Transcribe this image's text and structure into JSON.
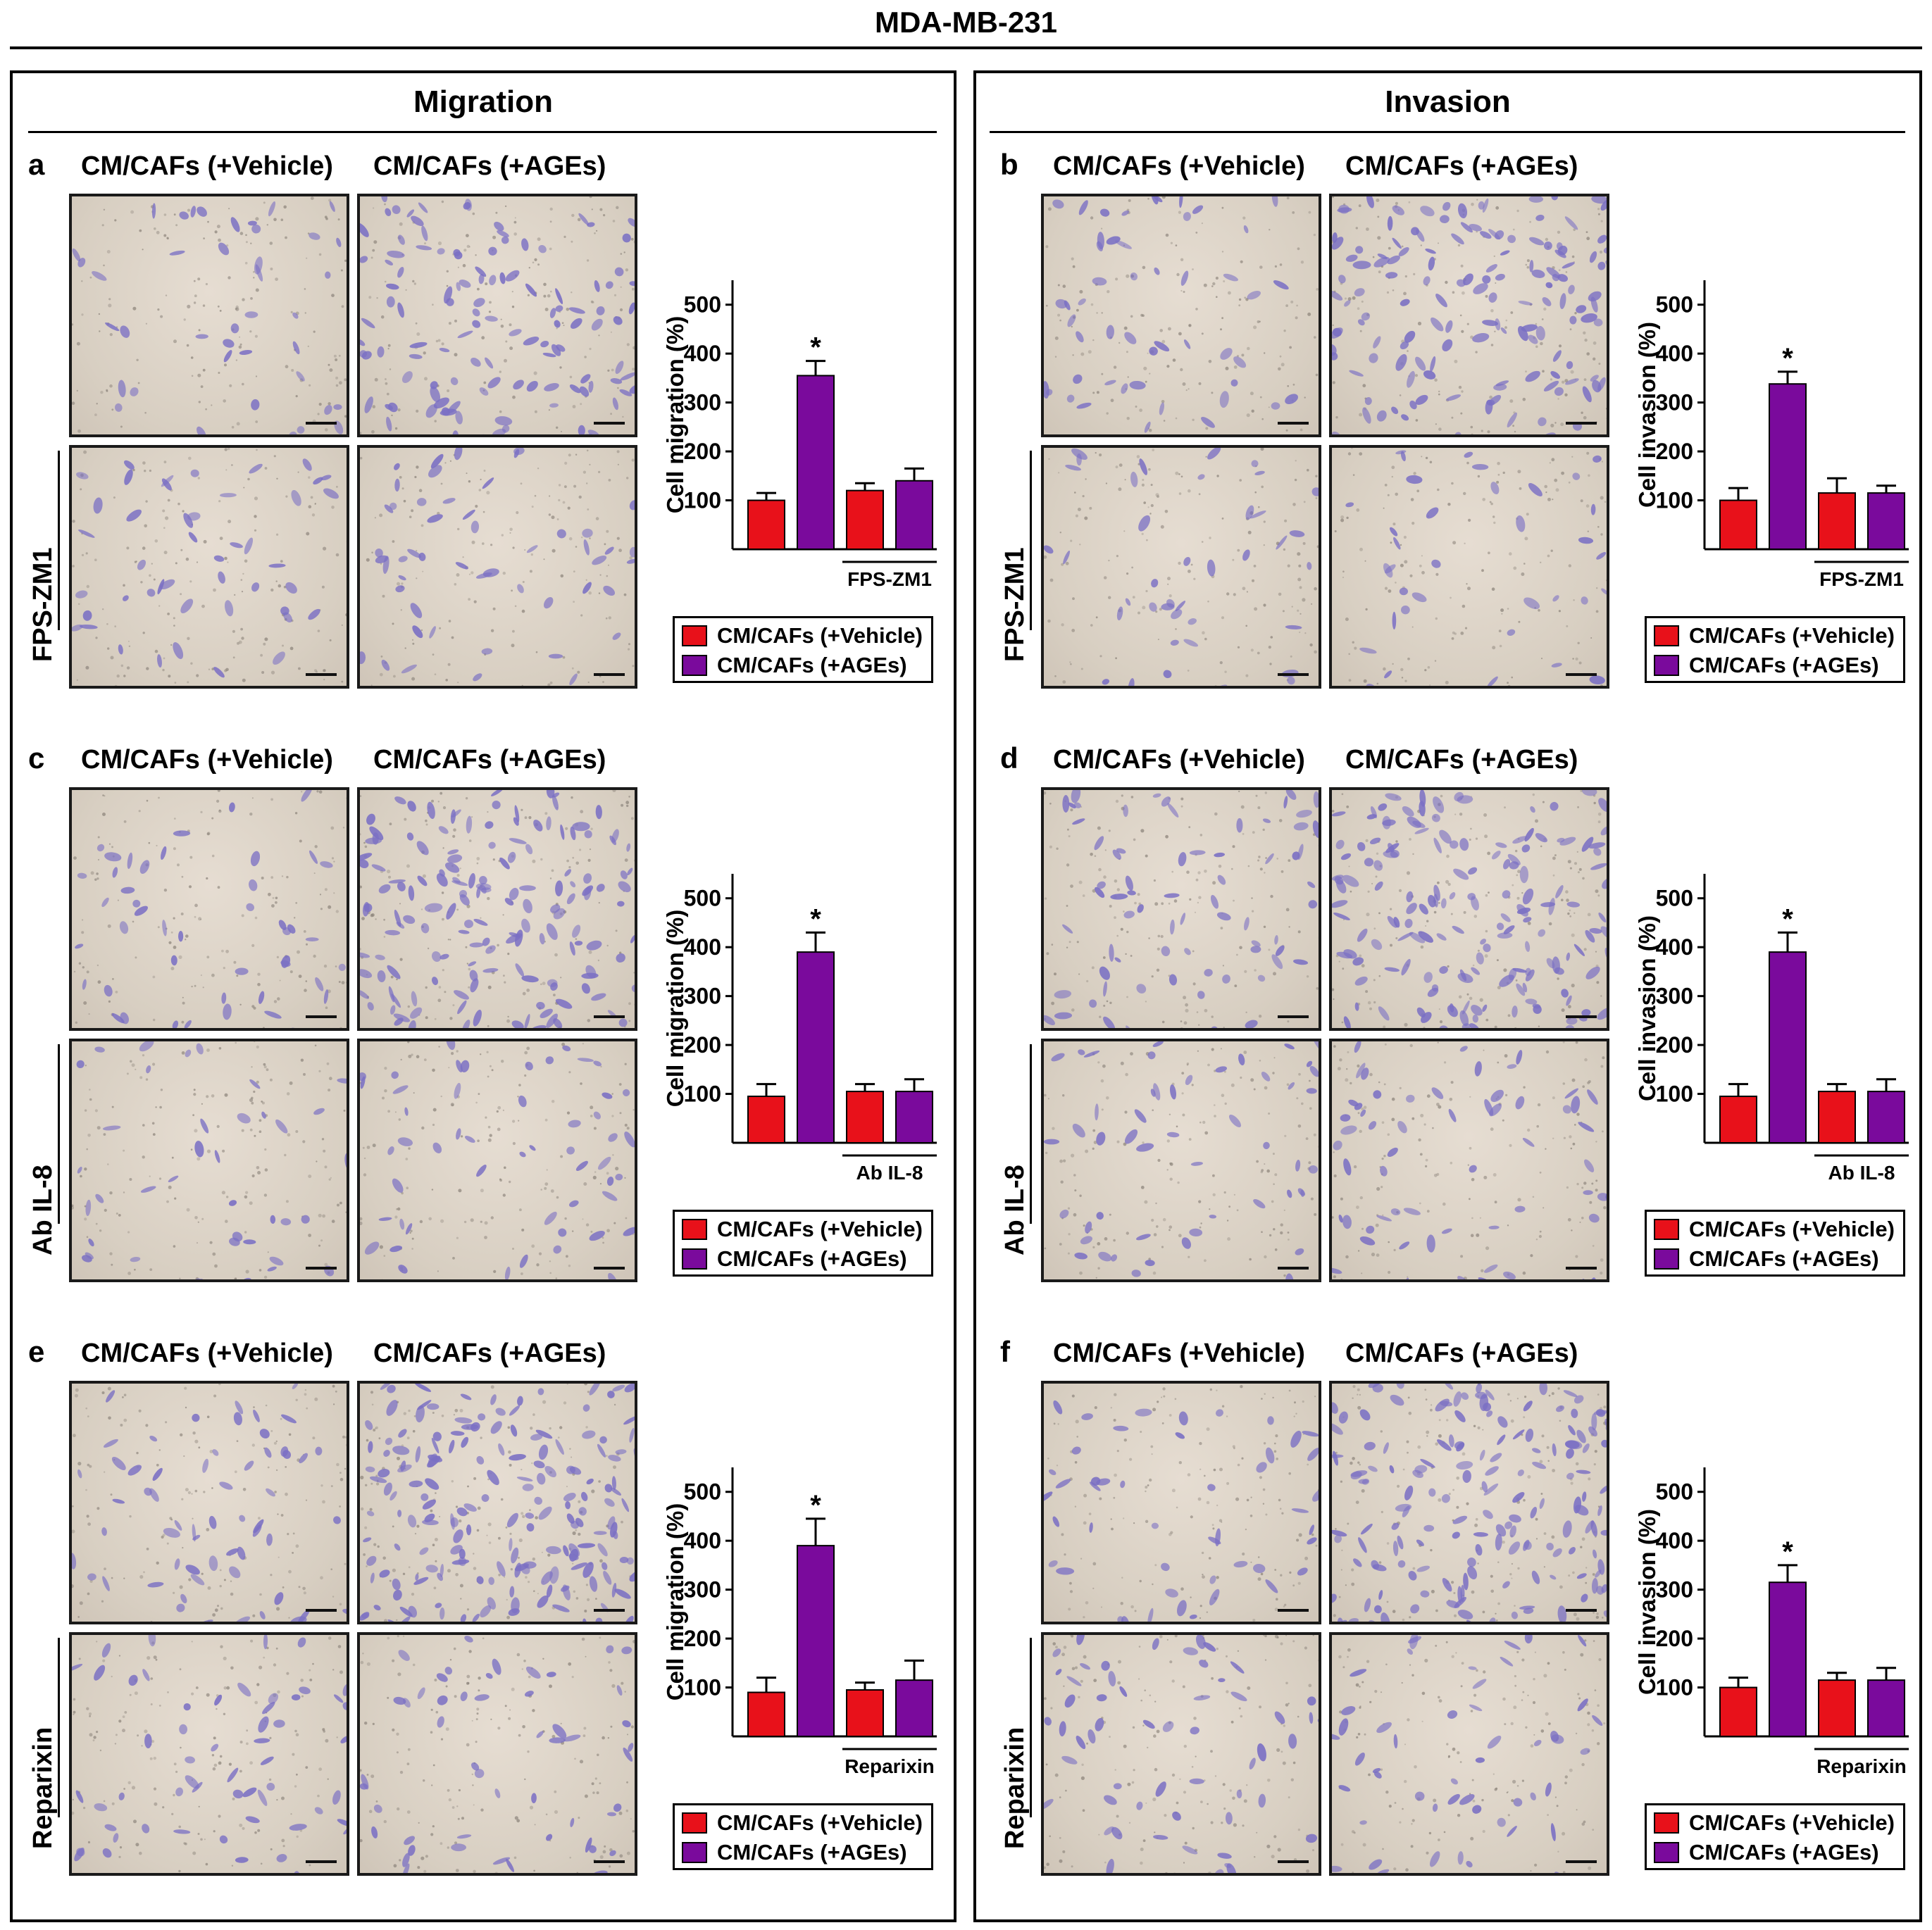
{
  "figure": {
    "title": "MDA-MB-231",
    "sections": {
      "migration": "Migration",
      "invasion": "Invasion"
    },
    "column_labels": {
      "vehicle": "CM/CAFs (+Vehicle)",
      "ages": "CM/CAFs (+AGEs)"
    },
    "legend": {
      "vehicle": "CM/CAFs (+Vehicle)",
      "ages": "CM/CAFs (+AGEs)"
    },
    "colors": {
      "vehicle": "#e8111a",
      "ages": "#7a0a9c",
      "micro_bg": "#d8cfc2",
      "cell_stain": "#7a6fc4"
    },
    "panels": [
      {
        "label": "a",
        "row_label": "FPS-ZM1",
        "inhibitor": "FPS-ZM1",
        "ylabel": "Cell migration (%)"
      },
      {
        "label": "b",
        "row_label": "FPS-ZM1",
        "inhibitor": "FPS-ZM1",
        "ylabel": "Cell invasion (%)"
      },
      {
        "label": "c",
        "row_label": "Ab IL-8",
        "inhibitor": "Ab IL-8",
        "ylabel": "Cell migration (%)"
      },
      {
        "label": "d",
        "row_label": "Ab IL-8",
        "inhibitor": "Ab IL-8",
        "ylabel": "Cell invasion (%)"
      },
      {
        "label": "e",
        "row_label": "Reparixin",
        "inhibitor": "Reparixin",
        "ylabel": "Cell migration (%)"
      },
      {
        "label": "f",
        "row_label": "Reparixin",
        "inhibitor": "Reparixin",
        "ylabel": "Cell invasion (%)"
      }
    ]
  },
  "chart_data": [
    {
      "panel": "a",
      "type": "bar",
      "title": "",
      "xlabel": "",
      "ylabel": "Cell migration (%)",
      "ylim": [
        0,
        550
      ],
      "yticks": [
        100,
        200,
        300,
        400,
        500
      ],
      "categories": [
        "CM/CAFs (+Vehicle)",
        "CM/CAFs (+AGEs)",
        "CM/CAFs (+Vehicle) + FPS-ZM1",
        "CM/CAFs (+AGEs) + FPS-ZM1"
      ],
      "values": [
        100,
        355,
        120,
        140
      ],
      "errors": [
        15,
        30,
        15,
        25
      ],
      "significant": [
        false,
        true,
        false,
        false
      ],
      "annotation": "*",
      "bracket_label": "FPS-ZM1"
    },
    {
      "panel": "b",
      "type": "bar",
      "title": "",
      "xlabel": "",
      "ylabel": "Cell invasion (%)",
      "ylim": [
        0,
        550
      ],
      "yticks": [
        100,
        200,
        300,
        400,
        500
      ],
      "categories": [
        "CM/CAFs (+Vehicle)",
        "CM/CAFs (+AGEs)",
        "CM/CAFs (+Vehicle) + FPS-ZM1",
        "CM/CAFs (+AGEs) + FPS-ZM1"
      ],
      "values": [
        100,
        338,
        115,
        115
      ],
      "errors": [
        25,
        25,
        30,
        15
      ],
      "significant": [
        false,
        true,
        false,
        false
      ],
      "annotation": "*",
      "bracket_label": "FPS-ZM1"
    },
    {
      "panel": "c",
      "type": "bar",
      "title": "",
      "xlabel": "",
      "ylabel": "Cell migration (%)",
      "ylim": [
        0,
        550
      ],
      "yticks": [
        100,
        200,
        300,
        400,
        500
      ],
      "categories": [
        "CM/CAFs (+Vehicle)",
        "CM/CAFs (+AGEs)",
        "CM/CAFs (+Vehicle) + Ab IL-8",
        "CM/CAFs (+AGEs) + Ab IL-8"
      ],
      "values": [
        95,
        390,
        105,
        105
      ],
      "errors": [
        25,
        40,
        15,
        25
      ],
      "significant": [
        false,
        true,
        false,
        false
      ],
      "annotation": "*",
      "bracket_label": "Ab IL-8"
    },
    {
      "panel": "d",
      "type": "bar",
      "title": "",
      "xlabel": "",
      "ylabel": "Cell invasion (%)",
      "ylim": [
        0,
        550
      ],
      "yticks": [
        100,
        200,
        300,
        400,
        500
      ],
      "categories": [
        "CM/CAFs (+Vehicle)",
        "CM/CAFs (+AGEs)",
        "CM/CAFs (+Vehicle) + Ab IL-8",
        "CM/CAFs (+AGEs) + Ab IL-8"
      ],
      "values": [
        95,
        390,
        105,
        105
      ],
      "errors": [
        25,
        40,
        15,
        25
      ],
      "significant": [
        false,
        true,
        false,
        false
      ],
      "annotation": "*",
      "bracket_label": "Ab IL-8"
    },
    {
      "panel": "e",
      "type": "bar",
      "title": "",
      "xlabel": "",
      "ylabel": "Cell migration (%)",
      "ylim": [
        0,
        550
      ],
      "yticks": [
        100,
        200,
        300,
        400,
        500
      ],
      "categories": [
        "CM/CAFs (+Vehicle)",
        "CM/CAFs (+AGEs)",
        "CM/CAFs (+Vehicle) + Reparixin",
        "CM/CAFs (+AGEs) + Reparixin"
      ],
      "values": [
        90,
        390,
        95,
        115
      ],
      "errors": [
        30,
        55,
        15,
        40
      ],
      "significant": [
        false,
        true,
        false,
        false
      ],
      "annotation": "*",
      "bracket_label": "Reparixin"
    },
    {
      "panel": "f",
      "type": "bar",
      "title": "",
      "xlabel": "",
      "ylabel": "Cell invasion (%)",
      "ylim": [
        0,
        550
      ],
      "yticks": [
        100,
        200,
        300,
        400,
        500
      ],
      "categories": [
        "CM/CAFs (+Vehicle)",
        "CM/CAFs (+AGEs)",
        "CM/CAFs (+Vehicle) + Reparixin",
        "CM/CAFs (+AGEs) + Reparixin"
      ],
      "values": [
        100,
        315,
        115,
        115
      ],
      "errors": [
        20,
        35,
        15,
        25
      ],
      "significant": [
        false,
        true,
        false,
        false
      ],
      "annotation": "*",
      "bracket_label": "Reparixin"
    }
  ]
}
